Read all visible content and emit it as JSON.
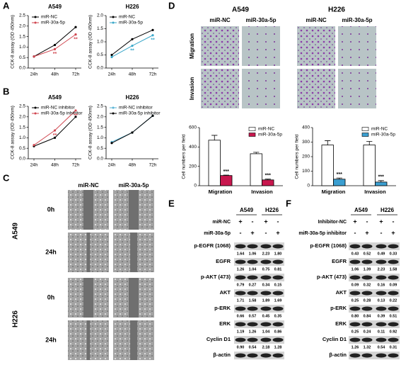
{
  "panels": [
    "A",
    "B",
    "C",
    "D",
    "E",
    "F"
  ],
  "chart_data": [
    {
      "type": "line",
      "title": "A549",
      "ylabel": "CCK-8 assay (OD 450nm)",
      "categories": [
        "24h",
        "48h",
        "72h"
      ],
      "ylim": [
        0,
        2.5
      ],
      "yticks": [
        {
          "value": 0,
          "label": "0.0"
        },
        {
          "value": 0.5,
          "label": "0.5"
        },
        {
          "value": 1,
          "label": "1.0"
        },
        {
          "value": 1.5,
          "label": "1.5"
        },
        {
          "value": 2,
          "label": "2.0"
        },
        {
          "value": 2.5,
          "label": "2.5"
        }
      ],
      "legend": "upper left",
      "series": [
        {
          "name": "miR-NC",
          "color": "#000000",
          "values": [
            0.55,
            1.1,
            1.95
          ]
        },
        {
          "name": "miR-30a-5p",
          "color": "#d0464f",
          "values": [
            0.55,
            0.9,
            1.6
          ]
        }
      ],
      "significance": [
        null,
        "**",
        "**"
      ]
    },
    {
      "type": "line",
      "title": "H226",
      "ylabel": "CCK-8 assay (OD 450nm)",
      "categories": [
        "24h",
        "48h",
        "72h"
      ],
      "ylim": [
        0,
        2
      ],
      "yticks": [
        {
          "value": 0,
          "label": "0.0"
        },
        {
          "value": 0.5,
          "label": "0.5"
        },
        {
          "value": 1,
          "label": "1.0"
        },
        {
          "value": 1.5,
          "label": "1.5"
        },
        {
          "value": 2,
          "label": "2.0"
        }
      ],
      "legend": "upper left",
      "series": [
        {
          "name": "miR-NC",
          "color": "#000000",
          "values": [
            0.5,
            1.1,
            1.45
          ]
        },
        {
          "name": "miR-30a-5p",
          "color": "#3aa7c9",
          "values": [
            0.42,
            0.85,
            1.25
          ]
        }
      ],
      "significance": [
        null,
        "**",
        "**"
      ]
    },
    {
      "type": "line",
      "title": "A549",
      "ylabel": "CCK-8 assay (OD 450nm)",
      "categories": [
        "24h",
        "48h",
        "72h"
      ],
      "ylim": [
        0,
        2.5
      ],
      "yticks": [
        {
          "value": 0,
          "label": "0.0"
        },
        {
          "value": 0.5,
          "label": "0.5"
        },
        {
          "value": 1,
          "label": "1.0"
        },
        {
          "value": 1.5,
          "label": "1.5"
        },
        {
          "value": 2,
          "label": "2.0"
        },
        {
          "value": 2.5,
          "label": "2.5"
        }
      ],
      "legend": "upper left",
      "series": [
        {
          "name": "miR-NC inhibitor",
          "color": "#000000",
          "values": [
            0.6,
            1.0,
            2.0
          ]
        },
        {
          "name": "miR-30a-5p  inhibitor",
          "color": "#d0464f",
          "values": [
            0.65,
            1.35,
            2.3
          ]
        }
      ],
      "significance": [
        null,
        "**",
        "**"
      ]
    },
    {
      "type": "line",
      "title": "H226",
      "ylabel": "CCK-8 assay (OD 450nm)",
      "categories": [
        "24h",
        "48h",
        "72h"
      ],
      "ylim": [
        0,
        2.5
      ],
      "yticks": [
        {
          "value": 0,
          "label": "0.0"
        },
        {
          "value": 0.5,
          "label": "0.5"
        },
        {
          "value": 1,
          "label": "1.0"
        },
        {
          "value": 1.5,
          "label": "1.5"
        },
        {
          "value": 2,
          "label": "2.0"
        },
        {
          "value": 2.5,
          "label": "2.5"
        }
      ],
      "legend": "upper left",
      "series": [
        {
          "name": "miR-NC inhibitor",
          "color": "#5ab4d6",
          "values": [
            0.8,
            1.25,
            2.05
          ]
        },
        {
          "name": "miR-30a-5p inhibitor",
          "color": "#000000",
          "values": [
            0.75,
            1.25,
            2.05
          ]
        }
      ]
    },
    {
      "type": "bar",
      "ylabel": "Cell numbers per field",
      "categories": [
        "Migration",
        "Invasion"
      ],
      "ylim": [
        0,
        600
      ],
      "yticks": [
        0,
        200,
        400,
        600
      ],
      "legend": "upper right",
      "series": [
        {
          "name": "miR-NC",
          "color": "#ffffff",
          "values": [
            470,
            330
          ],
          "errors": [
            50,
            15
          ]
        },
        {
          "name": "miR-30a-5p",
          "color": "#c8174e",
          "values": [
            105,
            60
          ],
          "errors": [
            5,
            8
          ],
          "significance": [
            "***",
            "***"
          ]
        }
      ]
    },
    {
      "type": "bar",
      "ylabel": "Cell numbers per field",
      "categories": [
        "Migration",
        "Invasion"
      ],
      "ylim": [
        0,
        400
      ],
      "yticks": [
        0,
        100,
        200,
        300,
        400
      ],
      "legend": "upper right",
      "series": [
        {
          "name": "miR-NC",
          "color": "#ffffff",
          "values": [
            280,
            280
          ],
          "errors": [
            30,
            25
          ]
        },
        {
          "name": "miR-30a-5p",
          "color": "#3b9fd1",
          "values": [
            45,
            25
          ],
          "errors": [
            8,
            10
          ],
          "significance": [
            "***",
            "***"
          ]
        }
      ]
    }
  ],
  "micrographs": {
    "C": {
      "columns": [
        "miR-NC",
        "miR-30a-5p"
      ],
      "rows": [
        "0h",
        "24h"
      ],
      "groups": [
        "A549",
        "H226"
      ]
    },
    "D": {
      "groups": [
        "A549",
        "H226"
      ],
      "columns": [
        "miR-NC",
        "miR-30a-5p"
      ],
      "rows": [
        "Migration",
        "Invasion"
      ]
    }
  },
  "blots": [
    {
      "cell_lines": [
        "A549",
        "H226"
      ],
      "treatments": [
        {
          "label": "miR-NC",
          "signs": [
            "+",
            "-",
            "+",
            "-"
          ]
        },
        {
          "label": "miR-30a-5p",
          "signs": [
            "-",
            "+",
            "-",
            "+"
          ]
        }
      ],
      "rows": [
        {
          "label": "p-EGFR (1068)",
          "values": [
            "1.64",
            "1.06",
            "2.23",
            "1.80"
          ]
        },
        {
          "label": "EGFR",
          "values": [
            "1.26",
            "1.04",
            "0.75",
            "0.81"
          ]
        },
        {
          "label": "p-AKT (473)",
          "values": [
            "0.79",
            "0.27",
            "0.34",
            "0.15"
          ]
        },
        {
          "label": "AKT",
          "values": [
            "1.71",
            "1.58",
            "1.89",
            "1.69"
          ]
        },
        {
          "label": "p-ERK",
          "values": [
            "0.66",
            "0.57",
            "0.45",
            "0.35"
          ]
        },
        {
          "label": "ERK",
          "values": [
            "1.19",
            "1.26",
            "1.04",
            "0.86"
          ]
        },
        {
          "label": "Cyclin D1",
          "values": [
            "0.90",
            "0.54",
            "2.18",
            "1.28"
          ]
        },
        {
          "label": "β-actin",
          "values": []
        }
      ]
    },
    {
      "cell_lines": [
        "A549",
        "H226"
      ],
      "treatments": [
        {
          "label": "Inhibitor-NC",
          "signs": [
            "+",
            "-",
            "+",
            "-"
          ]
        },
        {
          "label": "miR-30a-5p inhibitor",
          "signs": [
            "-",
            "+",
            "-",
            "+"
          ]
        }
      ],
      "rows": [
        {
          "label": "p-EGFR (1068)",
          "values": [
            "0.43",
            "0.52",
            "0.49",
            "0.33"
          ]
        },
        {
          "label": "EGFR",
          "values": [
            "1.06",
            "1.39",
            "2.23",
            "1.58"
          ]
        },
        {
          "label": "p-AKT (473)",
          "values": [
            "0.09",
            "0.32",
            "0.16",
            "0.09"
          ]
        },
        {
          "label": "AKT",
          "values": [
            "0.25",
            "0.28",
            "0.13",
            "0.22"
          ]
        },
        {
          "label": "p-ERK",
          "values": [
            "0.80",
            "0.84",
            "0.39",
            "0.51"
          ]
        },
        {
          "label": "ERK",
          "values": [
            "0.25",
            "0.24",
            "0.11",
            "0.92"
          ]
        },
        {
          "label": "Cyclin D1",
          "values": [
            "1.26",
            "1.32",
            "0.54",
            "0.31"
          ]
        },
        {
          "label": "β-actin",
          "values": []
        }
      ]
    }
  ]
}
